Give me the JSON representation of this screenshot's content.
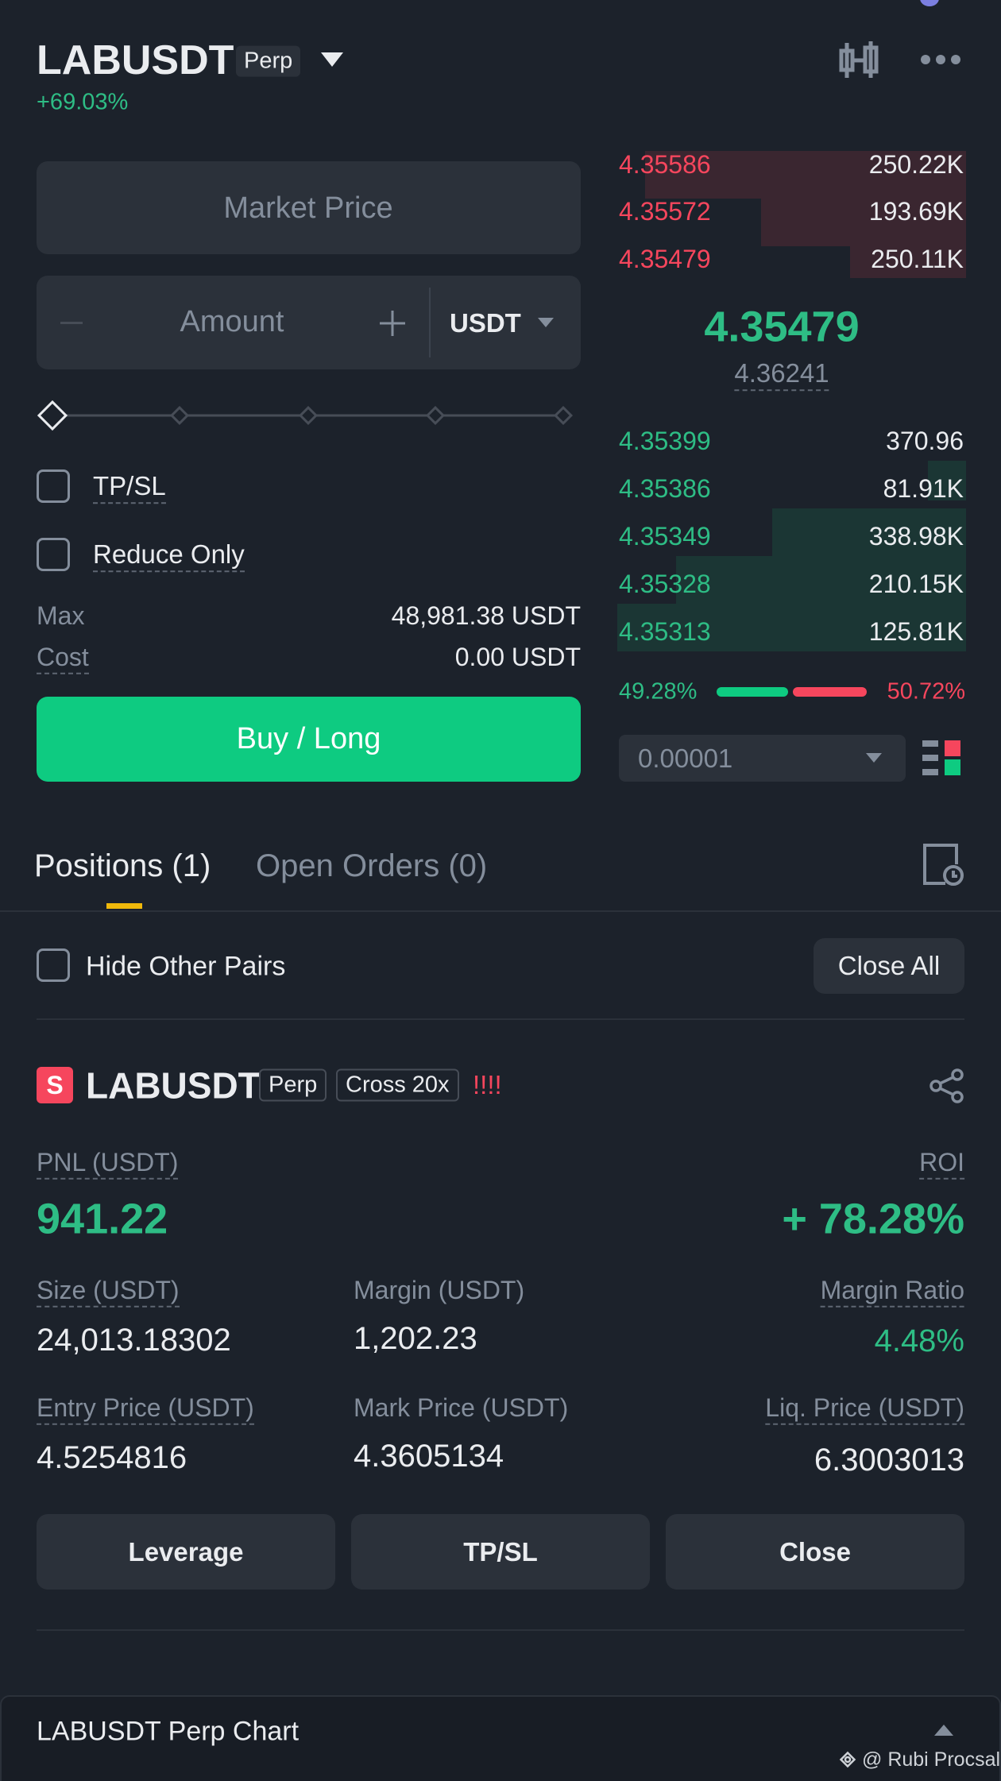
{
  "header": {
    "symbol": "LABUSDT",
    "badge": "Perp",
    "change": "+69.03%"
  },
  "order_form": {
    "price_placeholder": "Market Price",
    "amount_placeholder": "Amount",
    "unit": "USDT",
    "tpsl": "TP/SL",
    "reduce_only": "Reduce Only",
    "max_label": "Max",
    "max_value": "48,981.38 USDT",
    "cost_label": "Cost",
    "cost_value": "0.00 USDT",
    "submit": "Buy / Long"
  },
  "order_book": {
    "asks": [
      {
        "price": "4.35586",
        "size": "250.22K"
      },
      {
        "price": "4.35572",
        "size": "193.69K"
      },
      {
        "price": "4.35479",
        "size": "250.11K"
      }
    ],
    "last_price": "4.35479",
    "mark_price": "4.36241",
    "bids": [
      {
        "price": "4.35399",
        "size": "370.96"
      },
      {
        "price": "4.35386",
        "size": "81.91K"
      },
      {
        "price": "4.35349",
        "size": "338.98K"
      },
      {
        "price": "4.35328",
        "size": "210.15K"
      },
      {
        "price": "4.35313",
        "size": "125.81K"
      }
    ],
    "buy_ratio": "49.28%",
    "sell_ratio": "50.72%",
    "precision": "0.00001"
  },
  "tabs": [
    "Positions (1)",
    "Open Orders (0)"
  ],
  "filters": {
    "hide_other_pairs": "Hide Other Pairs",
    "close_all": "Close All"
  },
  "position": {
    "side": "S",
    "symbol": "LABUSDT",
    "badges": [
      "Perp",
      "Cross 20x"
    ],
    "alert": "!!!!",
    "pnl": {
      "label": "PNL (USDT)",
      "value": "941.22"
    },
    "roi": {
      "label": "ROI",
      "value": "+ 78.28%"
    },
    "size": {
      "label": "Size (USDT)",
      "value": "24,013.18302"
    },
    "margin": {
      "label": "Margin (USDT)",
      "value": "1,202.23"
    },
    "margin_ratio": {
      "label": "Margin Ratio",
      "value": "4.48%"
    },
    "entry_price": {
      "label": "Entry Price (USDT)",
      "value": "4.5254816"
    },
    "mark_price": {
      "label": "Mark Price (USDT)",
      "value": "4.3605134"
    },
    "liq_price": {
      "label": "Liq. Price (USDT)",
      "value": "6.3003013"
    },
    "buttons": [
      "Leverage",
      "TP/SL",
      "Close"
    ]
  },
  "chart_bar": {
    "title": "LABUSDT Perp Chart"
  },
  "watermark": "@ Rubi Procsal"
}
